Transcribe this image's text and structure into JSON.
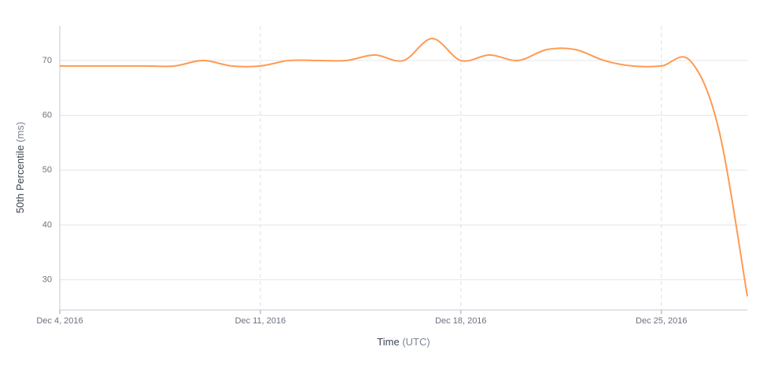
{
  "chart_data": {
    "type": "line",
    "x_label": "Time",
    "x_unit": "(UTC)",
    "y_label": "50th Percentile",
    "y_unit": "(ms)",
    "x": [
      "2016-12-04",
      "2016-12-05",
      "2016-12-06",
      "2016-12-07",
      "2016-12-08",
      "2016-12-09",
      "2016-12-10",
      "2016-12-11",
      "2016-12-12",
      "2016-12-13",
      "2016-12-14",
      "2016-12-15",
      "2016-12-16",
      "2016-12-17",
      "2016-12-18",
      "2016-12-19",
      "2016-12-20",
      "2016-12-21",
      "2016-12-22",
      "2016-12-23",
      "2016-12-24",
      "2016-12-25",
      "2016-12-26",
      "2016-12-27",
      "2016-12-28"
    ],
    "series": [
      {
        "color": "#ff9a52",
        "values": [
          69,
          69,
          69,
          69,
          69,
          70,
          69,
          69,
          70,
          70,
          70,
          71,
          70,
          74,
          70,
          71,
          70,
          72,
          72,
          70,
          69,
          69,
          70,
          57.5,
          27
        ]
      }
    ],
    "xlim": [
      "2016-12-04",
      "2016-12-28"
    ],
    "xticks": [
      {
        "value": "2016-12-04",
        "label": "Dec 4, 2016"
      },
      {
        "value": "2016-12-11",
        "label": "Dec 11, 2016"
      },
      {
        "value": "2016-12-18",
        "label": "Dec 18, 2016"
      },
      {
        "value": "2016-12-25",
        "label": "Dec 25, 2016"
      }
    ],
    "ylim": [
      24.5,
      76.3
    ],
    "yticks": [
      30,
      40,
      50,
      60,
      70
    ],
    "grid": true
  }
}
